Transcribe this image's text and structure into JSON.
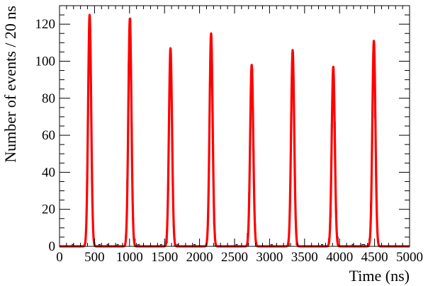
{
  "chart_data": {
    "type": "histogram",
    "title": "",
    "xlabel": "Time (ns)",
    "ylabel": "Number of events / 20 ns",
    "xlim": [
      0,
      5000
    ],
    "ylim": [
      0,
      130
    ],
    "x_ticks": [
      0,
      500,
      1000,
      1500,
      2000,
      2500,
      3000,
      3500,
      4000,
      4500,
      5000
    ],
    "y_ticks": [
      0,
      20,
      40,
      60,
      80,
      100,
      120
    ],
    "bin_width_ns": 20,
    "grid": false,
    "legend": "none",
    "series": [
      {
        "kind": "histogram",
        "color": "#000000",
        "pulses": [
          {
            "center": 430,
            "height": 125
          },
          {
            "center": 1005,
            "height": 123
          },
          {
            "center": 1585,
            "height": 106
          },
          {
            "center": 2165,
            "height": 110
          },
          {
            "center": 2745,
            "height": 95
          },
          {
            "center": 3330,
            "height": 102
          },
          {
            "center": 3910,
            "height": 97
          },
          {
            "center": 4490,
            "height": 107
          }
        ]
      },
      {
        "kind": "fit",
        "color": "#ff0000",
        "pulses": [
          {
            "center": 430,
            "height": 125
          },
          {
            "center": 1005,
            "height": 123
          },
          {
            "center": 1585,
            "height": 107
          },
          {
            "center": 2165,
            "height": 115
          },
          {
            "center": 2745,
            "height": 98
          },
          {
            "center": 3330,
            "height": 106
          },
          {
            "center": 3910,
            "height": 97
          },
          {
            "center": 4490,
            "height": 111
          }
        ]
      }
    ]
  }
}
